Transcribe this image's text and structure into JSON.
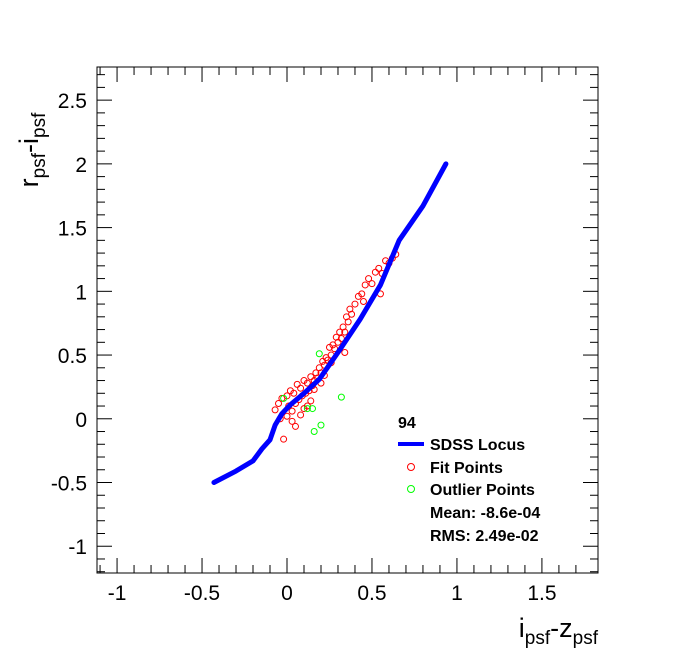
{
  "chart_data": {
    "type": "scatter",
    "title": "",
    "xlabel": {
      "main1": "i",
      "sub1": "psf",
      "mid": "-z",
      "sub2": "psf"
    },
    "ylabel": {
      "main1": "r",
      "sub1": "psf",
      "mid": "-i",
      "sub2": "psf"
    },
    "xlim": [
      -1.118,
      1.83
    ],
    "ylim": [
      -1.21,
      2.76
    ],
    "xticks": [
      -1,
      -0.5,
      0,
      0.5,
      1,
      1.5
    ],
    "xtick_labels": [
      "-1",
      "-0.5",
      "0",
      "0.5",
      "1",
      "1.5"
    ],
    "yticks": [
      -1,
      -0.5,
      0,
      0.5,
      1,
      1.5,
      2,
      2.5
    ],
    "ytick_labels": [
      "-1",
      "-0.5",
      "0",
      "0.5",
      "1",
      "1.5",
      "2",
      "2.5"
    ],
    "grid": false,
    "legend": {
      "placement": "bottom-right",
      "header": "94",
      "entries": [
        "SDSS Locus",
        "Fit Points",
        "Outlier Points"
      ],
      "stats": [
        "Mean: -8.6e-04",
        "RMS: 2.49e-02"
      ]
    },
    "colors": {
      "locus": "#0000ff",
      "fit": "#ff0000",
      "outlier": "#00ff00"
    },
    "series": [
      {
        "name": "SDSS Locus",
        "kind": "line",
        "x": [
          -0.43,
          -0.3,
          -0.2,
          -0.147,
          -0.1,
          -0.07,
          -0.03,
          0.02,
          0.1,
          0.19,
          0.31,
          0.43,
          0.55,
          0.66,
          0.8,
          0.935
        ],
        "y": [
          -0.5,
          -0.41,
          -0.33,
          -0.235,
          -0.165,
          -0.05,
          0.04,
          0.11,
          0.2,
          0.31,
          0.54,
          0.78,
          1.05,
          1.4,
          1.67,
          2.0
        ]
      },
      {
        "name": "Fit Points",
        "kind": "scatter",
        "x": [
          -0.07,
          -0.05,
          -0.03,
          -0.02,
          0.0,
          0.01,
          0.02,
          0.03,
          0.04,
          0.05,
          0.06,
          0.07,
          0.08,
          0.09,
          0.1,
          0.11,
          0.12,
          0.13,
          0.14,
          0.15,
          0.16,
          0.17,
          0.18,
          0.19,
          0.2,
          0.21,
          0.22,
          0.23,
          0.24,
          0.25,
          0.26,
          0.27,
          0.28,
          0.29,
          0.3,
          0.31,
          0.32,
          0.33,
          0.34,
          0.35,
          0.36,
          0.37,
          0.38,
          0.4,
          0.42,
          0.44,
          0.46,
          0.48,
          0.5,
          0.52,
          0.54,
          0.56,
          0.58,
          0.6,
          0.62,
          0.64,
          0.03,
          0.08,
          0.12,
          0.16,
          0.2,
          0.05,
          -0.04,
          0.0,
          0.1,
          0.14,
          0.22,
          0.26,
          0.34,
          0.45,
          0.55
        ],
        "y": [
          0.07,
          0.12,
          0.16,
          -0.16,
          0.18,
          0.1,
          0.22,
          0.06,
          0.2,
          0.12,
          0.27,
          0.15,
          0.24,
          0.18,
          0.3,
          0.2,
          0.28,
          0.22,
          0.33,
          0.26,
          0.3,
          0.36,
          0.32,
          0.4,
          0.36,
          0.45,
          0.42,
          0.48,
          0.46,
          0.56,
          0.5,
          0.58,
          0.55,
          0.64,
          0.6,
          0.68,
          0.63,
          0.72,
          0.68,
          0.8,
          0.76,
          0.86,
          0.82,
          0.9,
          0.96,
          0.98,
          1.05,
          1.1,
          1.06,
          1.15,
          1.18,
          1.14,
          1.24,
          1.22,
          1.26,
          1.29,
          -0.02,
          0.03,
          0.1,
          0.23,
          0.28,
          -0.06,
          0.0,
          0.02,
          0.08,
          0.14,
          0.34,
          0.44,
          0.52,
          0.92,
          0.98
        ]
      },
      {
        "name": "Outlier Points",
        "kind": "scatter",
        "x": [
          0.19,
          -0.02,
          0.12,
          0.15,
          0.32,
          0.2,
          0.16
        ],
        "y": [
          0.51,
          0.16,
          0.08,
          0.08,
          0.17,
          -0.05,
          -0.1
        ]
      }
    ]
  }
}
